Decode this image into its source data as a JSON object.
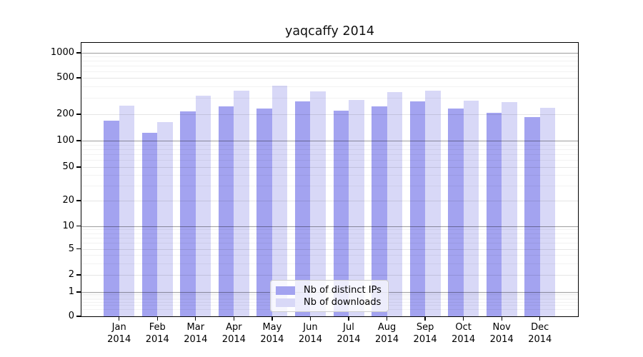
{
  "title": "yaqcaffy 2014",
  "legend": {
    "items": [
      {
        "label": "Nb of distinct IPs",
        "color": "#a3a3f0"
      },
      {
        "label": "Nb of downloads",
        "color": "#d8d8f7"
      }
    ]
  },
  "y_axis": {
    "tick_labels": [
      "0",
      "1",
      "2",
      "5",
      "10",
      "20",
      "50",
      "100",
      "200",
      "500",
      "1000"
    ]
  },
  "x_axis": {
    "months": [
      "Jan",
      "Feb",
      "Mar",
      "Apr",
      "May",
      "Jun",
      "Jul",
      "Aug",
      "Sep",
      "Oct",
      "Nov",
      "Dec"
    ],
    "year": "2014"
  },
  "chart_data": {
    "type": "bar",
    "title": "yaqcaffy 2014",
    "categories": [
      "Jan 2014",
      "Feb 2014",
      "Mar 2014",
      "Apr 2014",
      "May 2014",
      "Jun 2014",
      "Jul 2014",
      "Aug 2014",
      "Sep 2014",
      "Oct 2014",
      "Nov 2014",
      "Dec 2014"
    ],
    "series": [
      {
        "name": "Nb of distinct IPs",
        "color": "#a3a3f0",
        "values": [
          170,
          122,
          215,
          245,
          232,
          275,
          220,
          244,
          275,
          232,
          207,
          186
        ]
      },
      {
        "name": "Nb of downloads",
        "color": "#d8d8f7",
        "values": [
          247,
          164,
          318,
          364,
          410,
          355,
          286,
          350,
          360,
          283,
          271,
          235
        ]
      }
    ],
    "yscale": "symlog",
    "yticks": [
      0,
      1,
      2,
      5,
      10,
      20,
      50,
      100,
      200,
      500,
      1000
    ],
    "ylim": [
      0,
      1150
    ],
    "grid": true,
    "legend_position": "lower center"
  }
}
